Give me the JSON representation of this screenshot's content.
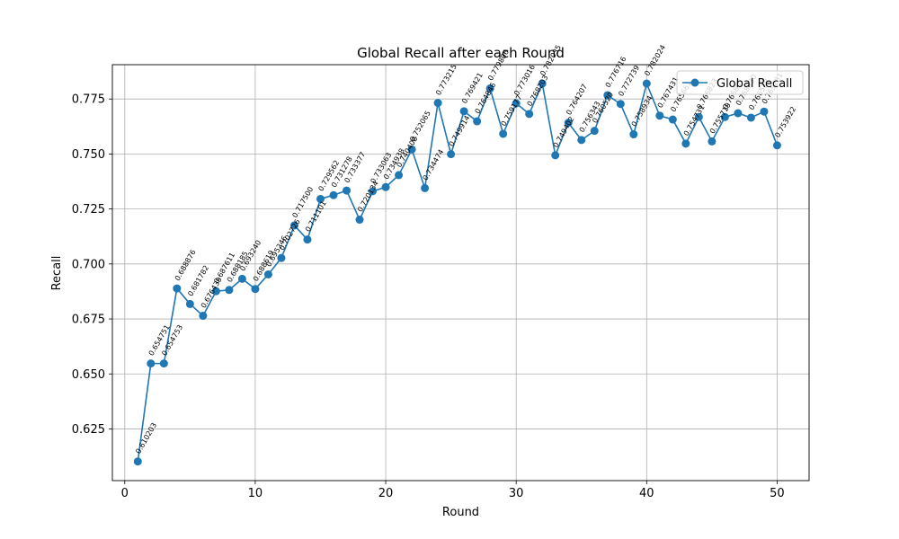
{
  "chart_data": {
    "type": "line",
    "title": "Global Recall after each Round",
    "xlabel": "Round",
    "ylabel": "Recall",
    "xlim": [
      -0.95,
      52.45
    ],
    "ylim": [
      0.6015,
      0.7906
    ],
    "xticks": [
      0,
      10,
      20,
      30,
      40,
      50
    ],
    "yticks": [
      0.625,
      0.65,
      0.675,
      0.7,
      0.725,
      0.75,
      0.775
    ],
    "grid": true,
    "legend_position": "upper right",
    "color": "#1f77b4",
    "series": [
      {
        "name": "Global Recall",
        "marker": "circle",
        "x": [
          1,
          2,
          3,
          4,
          5,
          6,
          7,
          8,
          9,
          10,
          11,
          12,
          13,
          14,
          15,
          16,
          17,
          18,
          19,
          20,
          21,
          22,
          23,
          24,
          25,
          26,
          27,
          28,
          29,
          30,
          31,
          32,
          33,
          34,
          35,
          36,
          37,
          38,
          39,
          40,
          41,
          42,
          43,
          44,
          45,
          46,
          47,
          48,
          49,
          50
        ],
        "values": [
          0.610203,
          0.654751,
          0.654753,
          0.688876,
          0.681782,
          0.676439,
          0.687611,
          0.688185,
          0.69324,
          0.688619,
          0.695246,
          0.702726,
          0.7175,
          0.711101,
          0.729562,
          0.731278,
          0.733377,
          0.720134,
          0.733063,
          0.734938,
          0.740408,
          0.752065,
          0.734474,
          0.773215,
          0.749914,
          0.769421,
          0.764846,
          0.779806,
          0.759177,
          0.773016,
          0.768203,
          0.782035,
          0.749402,
          0.764207,
          0.756343,
          0.76052,
          0.776716,
          0.772739,
          0.758934,
          0.782024,
          0.767431,
          0.765661,
          0.754731,
          0.766823,
          0.755719,
          0.766801,
          0.76853,
          0.766518,
          0.769281,
          0.753922
        ],
        "labels": [
          "0.610203",
          "0.654751",
          "0.654753",
          "0.688876",
          "0.681782",
          "0.676439",
          "0.687611",
          "0.688185",
          "0.693240",
          "0.688619",
          "0.695246",
          "0.702726",
          "0.717500",
          "0.711101",
          "0.729562",
          "0.731278",
          "0.733377",
          "0.720134",
          "0.733063",
          "0.734938",
          "0.740408",
          "0.752065",
          "0.734474",
          "0.773215",
          "0.749914",
          "0.769421",
          "0.764846",
          "0.779806",
          "0.759177",
          "0.773016",
          "0.768203",
          "0.782035",
          "0.749402",
          "0.764207",
          "0.756343",
          "0.760520",
          "0.776716",
          "0.772739",
          "0.758934",
          "0.782024",
          "0.767431",
          "0.765661",
          "0.754731",
          "0.766823",
          "0.755719",
          "0.766801",
          "0.768530",
          "0.766518",
          "0.769281",
          "0.753922"
        ]
      }
    ]
  }
}
